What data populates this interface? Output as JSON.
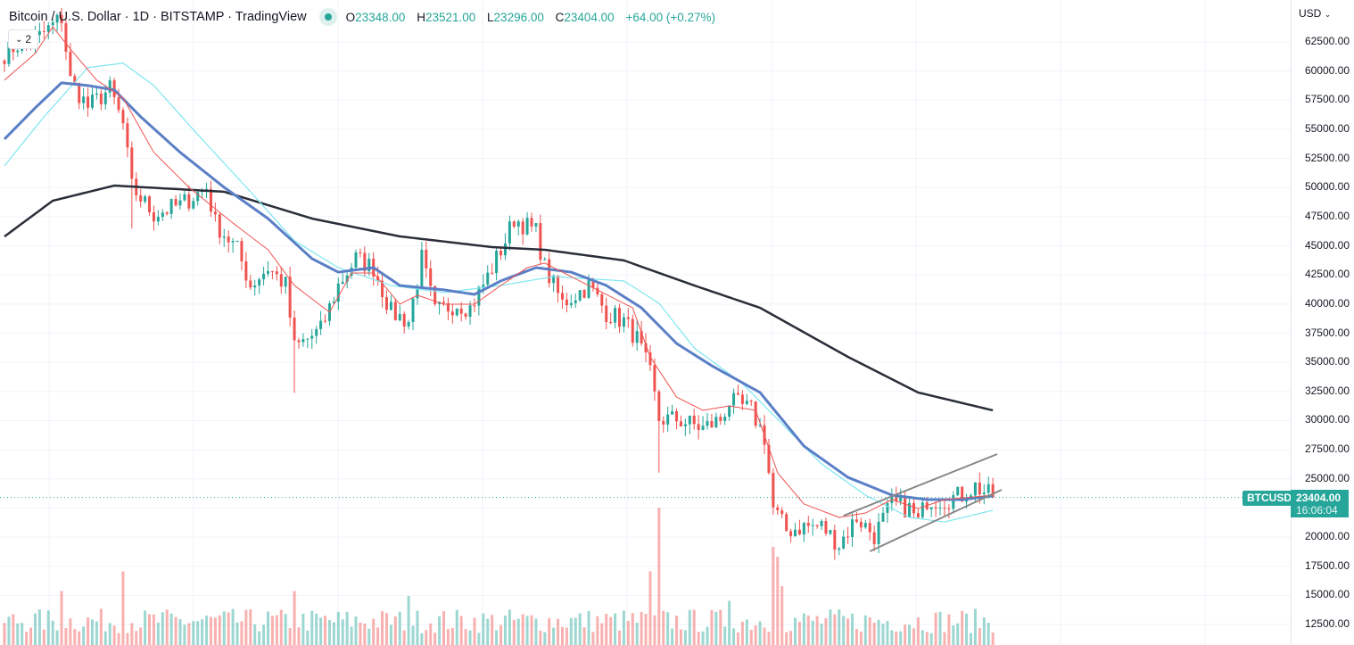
{
  "header": {
    "title": "Bitcoin / U.S. Dollar · 1D · BITSTAMP · TradingView",
    "market_status": "open",
    "ohlc": {
      "o_label": "O",
      "o": "23348.00",
      "h_label": "H",
      "h": "23521.00",
      "l_label": "L",
      "l": "23296.00",
      "c_label": "C",
      "c": "23404.00",
      "change": "+64.00 (+0.27%)"
    },
    "collapse_count": "2"
  },
  "price_axis": {
    "currency": "USD",
    "ticks": [
      "62500.00",
      "60000.00",
      "57500.00",
      "55000.00",
      "52500.00",
      "50000.00",
      "47500.00",
      "45000.00",
      "42500.00",
      "40000.00",
      "37500.00",
      "35000.00",
      "32500.00",
      "30000.00",
      "27500.00",
      "25000.00",
      "20000.00",
      "17500.00",
      "15000.00",
      "12500.00"
    ],
    "symbol_tag": "BTCUSD",
    "last_price": "23404.00",
    "countdown": "16:06:04"
  },
  "colors": {
    "up": "#26a69a",
    "down": "#ef5350",
    "ma_long": "#2a2e39",
    "ma_mid": "#5b7fc6",
    "ma_cyan": "#7fe6f0",
    "ma_fast": "#ef5350",
    "channel": "#888888"
  },
  "chart_data": {
    "type": "candlestick",
    "interval": "1D",
    "ylim": [
      12500,
      62500
    ],
    "last_close": 23404,
    "close_anchors": [
      [
        0,
        61500
      ],
      [
        3,
        62270
      ],
      [
        7,
        62650
      ],
      [
        13,
        64570
      ],
      [
        15,
        59200
      ],
      [
        19,
        56910
      ],
      [
        24,
        58440
      ],
      [
        27,
        55380
      ],
      [
        29,
        50020
      ],
      [
        34,
        47720
      ],
      [
        40,
        48490
      ],
      [
        46,
        50020
      ],
      [
        48,
        46960
      ],
      [
        53,
        44660
      ],
      [
        56,
        41600
      ],
      [
        60,
        43130
      ],
      [
        64,
        41600
      ],
      [
        66,
        36240
      ],
      [
        72,
        37770
      ],
      [
        76,
        41600
      ],
      [
        80,
        43900
      ],
      [
        84,
        43130
      ],
      [
        88,
        39300
      ],
      [
        92,
        38530
      ],
      [
        95,
        43900
      ],
      [
        98,
        39300
      ],
      [
        103,
        40070
      ],
      [
        106,
        39680
      ],
      [
        110,
        42360
      ],
      [
        114,
        45430
      ],
      [
        116,
        47340
      ],
      [
        121,
        46190
      ],
      [
        123,
        43130
      ],
      [
        127,
        40070
      ],
      [
        133,
        41600
      ],
      [
        137,
        39300
      ],
      [
        141,
        38530
      ],
      [
        144,
        37000
      ],
      [
        147,
        33940
      ],
      [
        149,
        30110
      ],
      [
        153,
        30110
      ],
      [
        159,
        29340
      ],
      [
        163,
        30110
      ],
      [
        165,
        31640
      ],
      [
        170,
        30880
      ],
      [
        173,
        28580
      ],
      [
        175,
        22450
      ],
      [
        178,
        20540
      ],
      [
        182,
        20920
      ],
      [
        186,
        20920
      ],
      [
        190,
        19390
      ],
      [
        194,
        21690
      ],
      [
        198,
        20160
      ],
      [
        202,
        22840
      ],
      [
        206,
        22450
      ],
      [
        208,
        21300
      ],
      [
        210,
        23220
      ],
      [
        214,
        23220
      ],
      [
        218,
        23600
      ],
      [
        221,
        24370
      ],
      [
        225,
        23404
      ]
    ],
    "moving_averages": [
      {
        "key": "ma_long",
        "points": [
          [
            0,
            45800
          ],
          [
            11,
            48870
          ],
          [
            25,
            50170
          ],
          [
            50,
            49640
          ],
          [
            70,
            47340
          ],
          [
            90,
            45810
          ],
          [
            111,
            44890
          ],
          [
            123,
            44660
          ],
          [
            141,
            43750
          ],
          [
            157,
            41600
          ],
          [
            172,
            39680
          ],
          [
            192,
            35470
          ],
          [
            208,
            32410
          ],
          [
            225,
            30880
          ]
        ]
      },
      {
        "key": "ma_cyan",
        "points": [
          [
            0,
            51870
          ],
          [
            9,
            56080
          ],
          [
            19,
            60300
          ],
          [
            27,
            60680
          ],
          [
            34,
            58760
          ],
          [
            44,
            54550
          ],
          [
            56,
            49640
          ],
          [
            66,
            45430
          ],
          [
            76,
            43130
          ],
          [
            88,
            41600
          ],
          [
            100,
            40990
          ],
          [
            113,
            41600
          ],
          [
            125,
            42360
          ],
          [
            141,
            41990
          ],
          [
            149,
            40070
          ],
          [
            157,
            36240
          ],
          [
            168,
            33180
          ],
          [
            176,
            30110
          ],
          [
            186,
            26280
          ],
          [
            196,
            23600
          ],
          [
            206,
            21690
          ],
          [
            214,
            21300
          ],
          [
            225,
            22300
          ]
        ]
      },
      {
        "key": "ma_mid",
        "points": [
          [
            0,
            54160
          ],
          [
            7,
            56840
          ],
          [
            13,
            58990
          ],
          [
            19,
            58760
          ],
          [
            25,
            58380
          ],
          [
            31,
            56080
          ],
          [
            40,
            53020
          ],
          [
            50,
            50020
          ],
          [
            60,
            47340
          ],
          [
            70,
            43900
          ],
          [
            76,
            42740
          ],
          [
            84,
            43130
          ],
          [
            90,
            41600
          ],
          [
            100,
            41220
          ],
          [
            107,
            40830
          ],
          [
            113,
            41990
          ],
          [
            121,
            43130
          ],
          [
            129,
            42740
          ],
          [
            137,
            41600
          ],
          [
            145,
            39680
          ],
          [
            153,
            36620
          ],
          [
            161,
            34710
          ],
          [
            172,
            32410
          ],
          [
            182,
            27810
          ],
          [
            192,
            25130
          ],
          [
            202,
            23600
          ],
          [
            210,
            23220
          ],
          [
            218,
            23220
          ],
          [
            225,
            23530
          ]
        ]
      },
      {
        "key": "ma_fast",
        "points": [
          [
            0,
            59220
          ],
          [
            7,
            61510
          ],
          [
            11,
            63800
          ],
          [
            15,
            61890
          ],
          [
            21,
            59220
          ],
          [
            27,
            57690
          ],
          [
            34,
            53020
          ],
          [
            42,
            50020
          ],
          [
            52,
            46960
          ],
          [
            60,
            44660
          ],
          [
            66,
            41600
          ],
          [
            74,
            39300
          ],
          [
            79,
            42670
          ],
          [
            84,
            42670
          ],
          [
            90,
            39990
          ],
          [
            94,
            40760
          ],
          [
            100,
            39990
          ],
          [
            107,
            39990
          ],
          [
            113,
            41600
          ],
          [
            119,
            43130
          ],
          [
            123,
            43520
          ],
          [
            129,
            42360
          ],
          [
            137,
            40830
          ],
          [
            143,
            39680
          ],
          [
            147,
            35470
          ],
          [
            153,
            32020
          ],
          [
            159,
            30880
          ],
          [
            165,
            31260
          ],
          [
            171,
            30880
          ],
          [
            176,
            25520
          ],
          [
            182,
            22840
          ],
          [
            190,
            21690
          ],
          [
            196,
            22070
          ],
          [
            202,
            23220
          ],
          [
            208,
            22450
          ],
          [
            214,
            23220
          ],
          [
            225,
            23600
          ]
        ]
      }
    ],
    "channel": {
      "upper": [
        [
          191,
          21840
        ],
        [
          226,
          27125
        ]
      ],
      "lower": [
        [
          197,
          18780
        ],
        [
          227,
          24060
        ]
      ]
    }
  }
}
